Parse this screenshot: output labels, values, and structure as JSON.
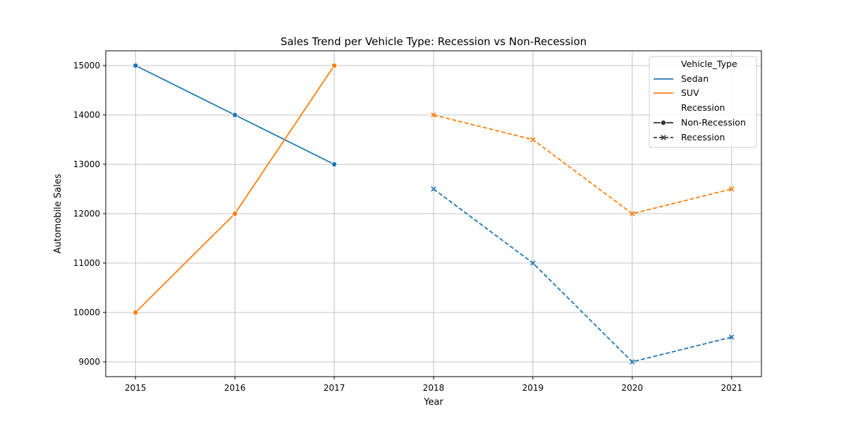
{
  "chart_data": {
    "type": "line",
    "title": "Sales Trend per Vehicle Type: Recession vs Non-Recession",
    "xlabel": "Year",
    "ylabel": "Automobile Sales",
    "x_ticks": [
      "2015",
      "2016",
      "2017",
      "2018",
      "2019",
      "2020",
      "2021"
    ],
    "y_ticks": [
      "9000",
      "10000",
      "11000",
      "12000",
      "13000",
      "14000",
      "15000"
    ],
    "xlim": [
      2014.7,
      2021.3
    ],
    "ylim": [
      8700,
      15300
    ],
    "grid": true,
    "legend_position": "top-right",
    "legend": {
      "hue_title": "Vehicle_Type",
      "style_title": "Recession",
      "hue_entries": [
        {
          "label": "Sedan",
          "color": "#1f77b4"
        },
        {
          "label": "SUV",
          "color": "#ff7f0e"
        }
      ],
      "style_entries": [
        {
          "label": "Non-Recession",
          "marker": "circle",
          "dash": "solid"
        },
        {
          "label": "Recession",
          "marker": "x",
          "dash": "dashed"
        }
      ]
    },
    "series": [
      {
        "vehicle": "Sedan",
        "recession": "Non-Recession",
        "color": "#1f77b4",
        "dash": "solid",
        "marker": "circle",
        "points": [
          [
            2015,
            15000
          ],
          [
            2016,
            14000
          ],
          [
            2017,
            13000
          ]
        ]
      },
      {
        "vehicle": "SUV",
        "recession": "Non-Recession",
        "color": "#ff7f0e",
        "dash": "solid",
        "marker": "circle",
        "points": [
          [
            2015,
            10000
          ],
          [
            2016,
            12000
          ],
          [
            2017,
            15000
          ]
        ]
      },
      {
        "vehicle": "SUV",
        "recession": "Recession",
        "color": "#ff7f0e",
        "dash": "dashed",
        "marker": "x",
        "points": [
          [
            2018,
            14000
          ],
          [
            2019,
            13500
          ],
          [
            2020,
            12000
          ],
          [
            2021,
            12500
          ]
        ]
      },
      {
        "vehicle": "Sedan",
        "recession": "Recession",
        "color": "#1f77b4",
        "dash": "dashed",
        "marker": "x",
        "points": [
          [
            2018,
            12500
          ],
          [
            2019,
            11000
          ],
          [
            2020,
            9000
          ],
          [
            2021,
            9500
          ]
        ]
      }
    ]
  }
}
